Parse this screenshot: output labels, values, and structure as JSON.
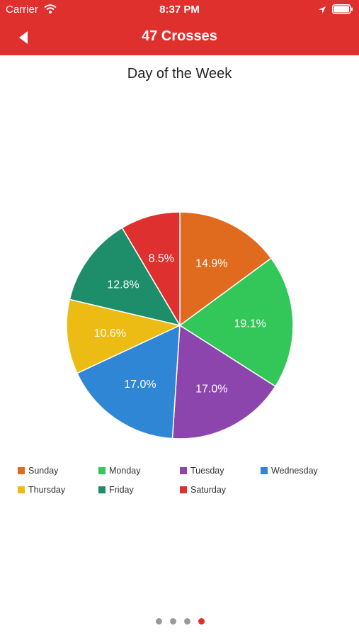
{
  "status_bar": {
    "carrier": "Carrier",
    "time": "8:37 PM"
  },
  "nav": {
    "title": "47 Crosses"
  },
  "chart_data": {
    "type": "pie",
    "title": "Day of the Week",
    "categories": [
      "Sunday",
      "Monday",
      "Tuesday",
      "Wednesday",
      "Thursday",
      "Friday",
      "Saturday"
    ],
    "values": [
      14.9,
      19.1,
      17.0,
      17.0,
      10.6,
      12.8,
      8.5
    ],
    "labels": [
      "14.9%",
      "19.1%",
      "17.0%",
      "17.0%",
      "10.6%",
      "12.8%",
      "8.5%"
    ],
    "colors": [
      "#e06b1f",
      "#33c759",
      "#8b45ad",
      "#2f86d4",
      "#ecbb14",
      "#1e8e6a",
      "#df3030"
    ],
    "legend_position": "bottom"
  },
  "page_indicator": {
    "count": 4,
    "current": 4,
    "active_color": "#e0302e",
    "inactive_color": "#9a9a9a"
  }
}
